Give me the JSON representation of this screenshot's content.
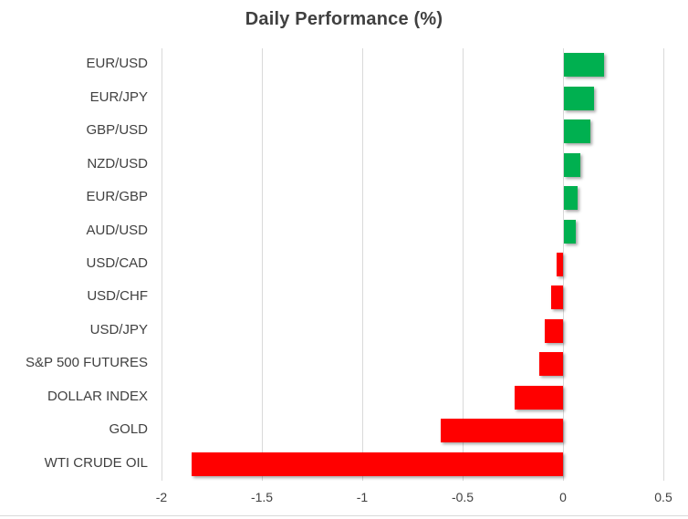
{
  "chart_data": {
    "type": "bar",
    "orientation": "horizontal",
    "title": "Daily Performance (%)",
    "categories": [
      "EUR/USD",
      "EUR/JPY",
      "GBP/USD",
      "NZD/USD",
      "EUR/GBP",
      "AUD/USD",
      "USD/CAD",
      "USD/CHF",
      "USD/JPY",
      "S&P 500 FUTURES",
      "DOLLAR INDEX",
      "GOLD",
      "WTI CRUDE OIL"
    ],
    "values": [
      0.2,
      0.15,
      0.13,
      0.08,
      0.07,
      0.06,
      -0.03,
      -0.06,
      -0.09,
      -0.12,
      -0.24,
      -0.61,
      -1.85
    ],
    "xlim": [
      -2,
      0.5
    ],
    "xtick_values": [
      -2,
      -1.5,
      -1,
      -0.5,
      0,
      0.5
    ],
    "xtick_labels": [
      "-2",
      "-1.5",
      "-1",
      "-0.5",
      "0",
      "0.5"
    ],
    "grid": true,
    "legend": "none",
    "colors": {
      "positive": "#00B050",
      "negative": "#FF0000",
      "gridline": "#D9D9D9",
      "text": "#404040",
      "background": "#FFFFFF"
    }
  }
}
